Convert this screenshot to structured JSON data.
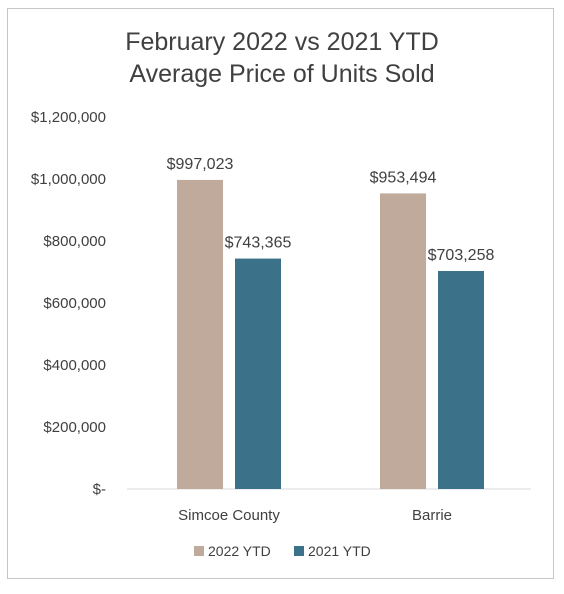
{
  "chart_data": {
    "type": "bar",
    "title": "February 2022 vs 2021 YTD",
    "subtitle": "Average Price of Units Sold",
    "xlabel": "",
    "ylabel": "",
    "categories": [
      "Simcoe County",
      "Barrie"
    ],
    "series": [
      {
        "name": "2022 YTD",
        "color": "#bfaa9b",
        "values": [
          997023,
          953494
        ],
        "labels": [
          "$997,023",
          "$953,494"
        ]
      },
      {
        "name": "2021 YTD",
        "color": "#3b7189",
        "values": [
          743365,
          703258
        ],
        "labels": [
          "$743,365",
          "$703,258"
        ]
      }
    ],
    "ylim": [
      0,
      1200000
    ],
    "yticks": [
      0,
      200000,
      400000,
      600000,
      800000,
      1000000,
      1200000
    ],
    "ytick_labels": [
      "$-",
      "$200,000",
      "$400,000",
      "$600,000",
      "$800,000",
      "$1,000,000",
      "$1,200,000"
    ],
    "grid": false,
    "legend_position": "bottom"
  }
}
